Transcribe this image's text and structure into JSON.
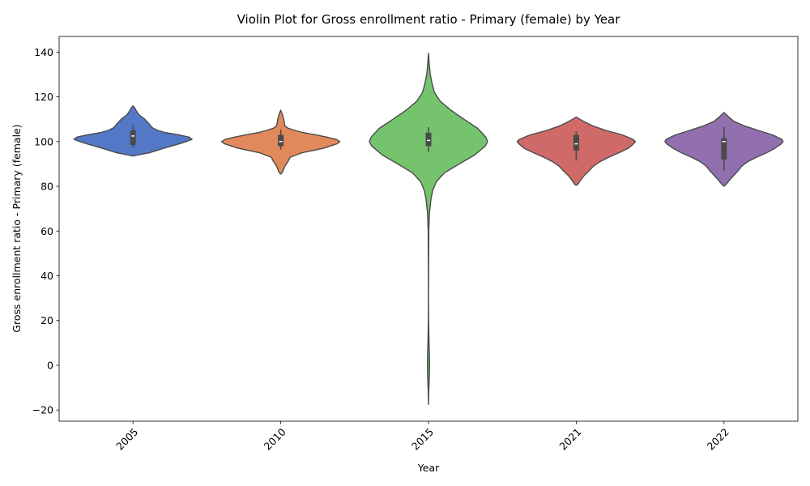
{
  "chart_data": {
    "type": "violin",
    "title": "Violin Plot for Gross enrollment ratio - Primary (female) by Year",
    "xlabel": "Year",
    "ylabel": "Gross enrollment ratio - Primary (female)",
    "ylim": [
      -25,
      147
    ],
    "yticks": [
      -20,
      0,
      20,
      40,
      60,
      80,
      100,
      120,
      140
    ],
    "grid": false,
    "legend": "none",
    "categories": [
      "2005",
      "2010",
      "2015",
      "2021",
      "2022"
    ],
    "violins": [
      {
        "category": "2005",
        "color": "#5478c8",
        "min": 93.5,
        "max": 116,
        "q1": 98.5,
        "median": 102.5,
        "q3": 105,
        "whisker_low": 97.5,
        "whisker_high": 107.5,
        "profile": [
          [
            93.5,
            0.0
          ],
          [
            94,
            0.08
          ],
          [
            95,
            0.28
          ],
          [
            97,
            0.52
          ],
          [
            99,
            0.78
          ],
          [
            100,
            0.9
          ],
          [
            101,
            1.0
          ],
          [
            102,
            0.95
          ],
          [
            103,
            0.78
          ],
          [
            104,
            0.55
          ],
          [
            105,
            0.42
          ],
          [
            106,
            0.34
          ],
          [
            107,
            0.3
          ],
          [
            108,
            0.27
          ],
          [
            110,
            0.2
          ],
          [
            112,
            0.1
          ],
          [
            114,
            0.05
          ],
          [
            115,
            0.03
          ],
          [
            116,
            0.0
          ]
        ]
      },
      {
        "category": "2010",
        "color": "#e2895b",
        "min": 85.5,
        "max": 114,
        "q1": 98,
        "median": 100,
        "q3": 103,
        "whisker_low": 96.5,
        "whisker_high": 105.5,
        "profile": [
          [
            85.5,
            0.0
          ],
          [
            86,
            0.02
          ],
          [
            87,
            0.04
          ],
          [
            89,
            0.07
          ],
          [
            91,
            0.12
          ],
          [
            93,
            0.16
          ],
          [
            95,
            0.36
          ],
          [
            97,
            0.72
          ],
          [
            99,
            0.95
          ],
          [
            100,
            1.0
          ],
          [
            101,
            0.94
          ],
          [
            102,
            0.78
          ],
          [
            103,
            0.6
          ],
          [
            104,
            0.38
          ],
          [
            105,
            0.24
          ],
          [
            106,
            0.12
          ],
          [
            107,
            0.07
          ],
          [
            110,
            0.05
          ],
          [
            112,
            0.03
          ],
          [
            114,
            0.0
          ]
        ]
      },
      {
        "category": "2015",
        "color": "#75c46d",
        "min": -17.5,
        "max": 139.5,
        "q1": 98,
        "median": 100.5,
        "q3": 104,
        "whisker_low": 95.5,
        "whisker_high": 106.5,
        "profile": [
          [
            -17.5,
            0.0
          ],
          [
            -12,
            0.004
          ],
          [
            -5,
            0.014
          ],
          [
            0,
            0.018
          ],
          [
            5,
            0.015
          ],
          [
            12,
            0.008
          ],
          [
            20,
            0.002
          ],
          [
            30,
            0.001
          ],
          [
            45,
            0.002
          ],
          [
            60,
            0.005
          ],
          [
            68,
            0.016
          ],
          [
            74,
            0.04
          ],
          [
            78,
            0.07
          ],
          [
            82,
            0.13
          ],
          [
            86,
            0.27
          ],
          [
            90,
            0.52
          ],
          [
            94,
            0.78
          ],
          [
            98,
            0.96
          ],
          [
            100,
            1.0
          ],
          [
            102,
            0.97
          ],
          [
            106,
            0.83
          ],
          [
            110,
            0.6
          ],
          [
            114,
            0.38
          ],
          [
            118,
            0.2
          ],
          [
            122,
            0.1
          ],
          [
            126,
            0.06
          ],
          [
            130,
            0.03
          ],
          [
            134,
            0.015
          ],
          [
            139.5,
            0.0
          ]
        ]
      },
      {
        "category": "2021",
        "color": "#cf6a69",
        "min": 80.5,
        "max": 111,
        "q1": 96,
        "median": 99,
        "q3": 103,
        "whisker_low": 91.5,
        "whisker_high": 104.5,
        "profile": [
          [
            80.5,
            0.0
          ],
          [
            81,
            0.03
          ],
          [
            83,
            0.08
          ],
          [
            85,
            0.14
          ],
          [
            87,
            0.22
          ],
          [
            89,
            0.29
          ],
          [
            91,
            0.4
          ],
          [
            93,
            0.55
          ],
          [
            95,
            0.72
          ],
          [
            97,
            0.88
          ],
          [
            99,
            0.97
          ],
          [
            100,
            1.0
          ],
          [
            101,
            0.96
          ],
          [
            103,
            0.78
          ],
          [
            105,
            0.5
          ],
          [
            107,
            0.28
          ],
          [
            109,
            0.13
          ],
          [
            110,
            0.06
          ],
          [
            111,
            0.0
          ]
        ]
      },
      {
        "category": "2022",
        "color": "#9270b0",
        "min": 80,
        "max": 113,
        "q1": 92,
        "median": 100,
        "q3": 101.5,
        "whisker_low": 87,
        "whisker_high": 106.5,
        "profile": [
          [
            80,
            0.0
          ],
          [
            81,
            0.04
          ],
          [
            83,
            0.1
          ],
          [
            85,
            0.17
          ],
          [
            87,
            0.24
          ],
          [
            89,
            0.3
          ],
          [
            91,
            0.4
          ],
          [
            93,
            0.55
          ],
          [
            95,
            0.72
          ],
          [
            97,
            0.86
          ],
          [
            99,
            0.97
          ],
          [
            100,
            1.0
          ],
          [
            101,
            0.98
          ],
          [
            103,
            0.82
          ],
          [
            105,
            0.58
          ],
          [
            107,
            0.35
          ],
          [
            109,
            0.17
          ],
          [
            111,
            0.08
          ],
          [
            112,
            0.04
          ],
          [
            113,
            0.0
          ]
        ]
      }
    ]
  }
}
